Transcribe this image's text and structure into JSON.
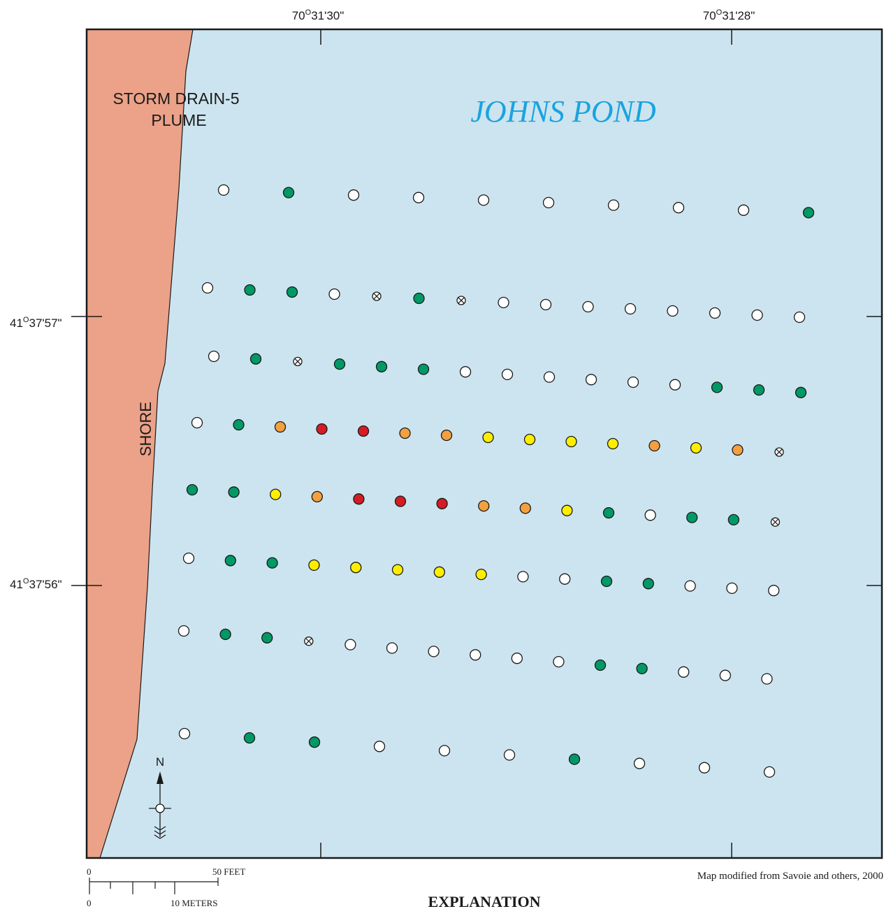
{
  "map": {
    "pond_label": "JOHNS POND",
    "plume_label_line1": "STORM DRAIN-5",
    "plume_label_line2": "PLUME",
    "shore_label": "SHORE",
    "colors": {
      "water": "#cce4ef",
      "land": "#eba288",
      "frame": "#1a1a1a",
      "pond_label": "#1aa3e0"
    },
    "longitude_ticks": [
      {
        "deg": "70",
        "rest": "31'30\""
      },
      {
        "deg": "70",
        "rest": "31'28\""
      }
    ],
    "latitude_ticks": [
      {
        "deg": "41",
        "rest": "37'57\""
      },
      {
        "deg": "41",
        "rest": "37'56\""
      }
    ],
    "north_arrow": {
      "label": "N"
    },
    "scale_bar": {
      "feet_zero": "0",
      "feet_label": "50 FEET",
      "meters_zero": "0",
      "meters_label": "10 METERS"
    },
    "credit": "Map modified from Savoie and others, 2000",
    "explanation_title": "EXPLANATION",
    "symbol_colors": {
      "open": "#ffffff",
      "green": "#009966",
      "yellow": "#ffee00",
      "orange": "#f4a040",
      "red": "#d41c24",
      "x": "#ffffff"
    },
    "transect_rows": [
      [
        "open",
        "green",
        "open",
        "open",
        "open",
        "open",
        "open",
        "open",
        "open",
        "green"
      ],
      [
        "open",
        "green",
        "green",
        "open",
        "x",
        "green",
        "x",
        "open",
        "open",
        "open",
        "open",
        "open",
        "open",
        "open",
        "open"
      ],
      [
        "open",
        "green",
        "x",
        "green",
        "green",
        "green",
        "open",
        "open",
        "open",
        "open",
        "open",
        "open",
        "green",
        "green",
        "green"
      ],
      [
        "open",
        "green",
        "orange",
        "red",
        "red",
        "orange",
        "orange",
        "yellow",
        "yellow",
        "yellow",
        "yellow",
        "orange",
        "yellow",
        "orange",
        "x"
      ],
      [
        "green",
        "green",
        "yellow",
        "orange",
        "red",
        "red",
        "red",
        "orange",
        "orange",
        "yellow",
        "green",
        "open",
        "green",
        "green",
        "x"
      ],
      [
        "open",
        "green",
        "green",
        "yellow",
        "yellow",
        "yellow",
        "yellow",
        "yellow",
        "open",
        "open",
        "green",
        "green",
        "open",
        "open",
        "open"
      ],
      [
        "open",
        "green",
        "green",
        "x",
        "open",
        "open",
        "open",
        "open",
        "open",
        "open",
        "green",
        "green",
        "open",
        "open",
        "open"
      ],
      [
        "open",
        "green",
        "green",
        "open",
        "open",
        "open",
        "green",
        "open",
        "open",
        "open"
      ]
    ]
  }
}
